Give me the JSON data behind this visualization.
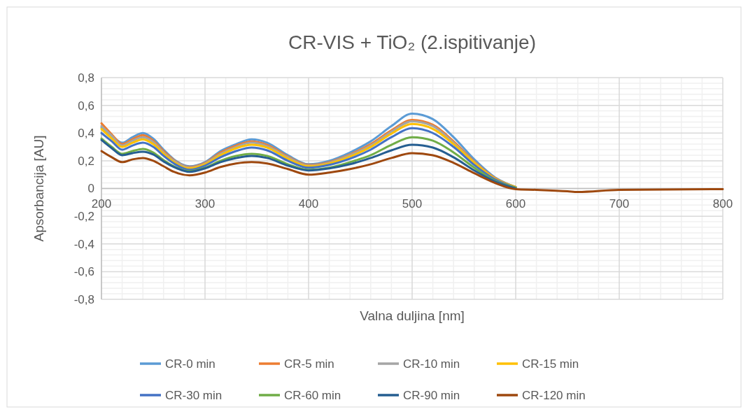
{
  "chart_data": {
    "type": "line",
    "title": "CR-VIS + TiO₂ (2.ispitivanje)",
    "xlabel": "Valna duljina  [nm]",
    "ylabel": "Apsorbancija [AU]",
    "x": [
      200,
      210,
      220,
      230,
      240,
      250,
      260,
      270,
      285,
      300,
      315,
      330,
      345,
      360,
      380,
      400,
      420,
      440,
      460,
      480,
      500,
      520,
      540,
      560,
      580,
      600,
      620,
      650,
      660,
      700,
      800
    ],
    "xlim": [
      200,
      800
    ],
    "xticks": [
      200,
      300,
      400,
      500,
      600,
      700,
      800
    ],
    "ylim": [
      -0.8,
      0.8
    ],
    "yticks": [
      {
        "value": -0.8,
        "label": "-0,8"
      },
      {
        "value": -0.6,
        "label": "-0,6"
      },
      {
        "value": -0.4,
        "label": "-0,4"
      },
      {
        "value": -0.2,
        "label": "-0,2"
      },
      0,
      {
        "value": 0.2,
        "label": "0,2"
      },
      {
        "value": 0.4,
        "label": "0,4"
      },
      {
        "value": 0.6,
        "label": "0,6"
      },
      {
        "value": 0.8,
        "label": "0,8"
      }
    ],
    "grid": true,
    "legend": "bottom",
    "marker": "none",
    "line_style": "solid",
    "series": [
      {
        "name": "CR-0 min",
        "color": "#5b9bd5",
        "values": [
          0.44,
          0.38,
          0.33,
          0.37,
          0.4,
          0.36,
          0.28,
          0.21,
          0.16,
          0.19,
          0.27,
          0.32,
          0.355,
          0.33,
          0.24,
          0.175,
          0.2,
          0.26,
          0.34,
          0.45,
          0.54,
          0.5,
          0.37,
          0.21,
          0.08,
          0.01,
          null,
          null,
          null,
          null,
          null
        ]
      },
      {
        "name": "CR-5 min",
        "color": "#ed7d31",
        "values": [
          0.47,
          0.39,
          0.32,
          0.355,
          0.385,
          0.345,
          0.27,
          0.205,
          0.155,
          0.185,
          0.26,
          0.31,
          0.34,
          0.315,
          0.23,
          0.17,
          0.19,
          0.245,
          0.32,
          0.42,
          0.495,
          0.46,
          0.34,
          0.195,
          0.075,
          0.01,
          null,
          null,
          null,
          null,
          null
        ]
      },
      {
        "name": "CR-10 min",
        "color": "#a5a5a5",
        "values": [
          0.45,
          0.38,
          0.31,
          0.345,
          0.37,
          0.335,
          0.26,
          0.2,
          0.15,
          0.18,
          0.25,
          0.3,
          0.33,
          0.305,
          0.225,
          0.165,
          0.185,
          0.24,
          0.31,
          0.41,
          0.485,
          0.45,
          0.33,
          0.19,
          0.07,
          0.01,
          null,
          null,
          null,
          null,
          null
        ]
      },
      {
        "name": "CR-15 min",
        "color": "#ffc000",
        "values": [
          0.43,
          0.36,
          0.3,
          0.33,
          0.355,
          0.32,
          0.25,
          0.19,
          0.145,
          0.175,
          0.24,
          0.29,
          0.315,
          0.295,
          0.215,
          0.16,
          0.18,
          0.23,
          0.3,
          0.395,
          0.465,
          0.43,
          0.32,
          0.185,
          0.07,
          0.01,
          null,
          null,
          null,
          null,
          null
        ]
      },
      {
        "name": "CR-30 min",
        "color": "#4472c4",
        "values": [
          0.4,
          0.34,
          0.28,
          0.31,
          0.33,
          0.3,
          0.235,
          0.18,
          0.135,
          0.165,
          0.225,
          0.27,
          0.295,
          0.275,
          0.2,
          0.15,
          0.17,
          0.215,
          0.28,
          0.37,
          0.435,
          0.4,
          0.3,
          0.17,
          0.065,
          0.005,
          null,
          null,
          null,
          null,
          null
        ]
      },
      {
        "name": "CR-60 min",
        "color": "#70ad47",
        "values": [
          0.36,
          0.3,
          0.25,
          0.27,
          0.285,
          0.26,
          0.205,
          0.16,
          0.125,
          0.15,
          0.2,
          0.235,
          0.25,
          0.235,
          0.175,
          0.135,
          0.15,
          0.19,
          0.24,
          0.315,
          0.37,
          0.345,
          0.26,
          0.15,
          0.055,
          0.005,
          null,
          null,
          null,
          null,
          null
        ]
      },
      {
        "name": "CR-90 min",
        "color": "#255e91",
        "values": [
          0.35,
          0.29,
          0.24,
          0.255,
          0.265,
          0.245,
          0.195,
          0.155,
          0.12,
          0.145,
          0.19,
          0.22,
          0.235,
          0.22,
          0.165,
          0.13,
          0.145,
          0.175,
          0.22,
          0.275,
          0.315,
          0.295,
          0.225,
          0.13,
          0.05,
          0,
          null,
          null,
          null,
          null,
          null
        ]
      },
      {
        "name": "CR-120 min",
        "color": "#9e480e",
        "values": [
          0.27,
          0.225,
          0.19,
          0.21,
          0.22,
          0.2,
          0.16,
          0.12,
          0.095,
          0.115,
          0.155,
          0.18,
          0.19,
          0.18,
          0.14,
          0.1,
          0.115,
          0.14,
          0.175,
          0.22,
          0.255,
          0.24,
          0.185,
          0.11,
          0.04,
          -0.005,
          -0.01,
          -0.02,
          -0.025,
          -0.01,
          -0.005
        ]
      }
    ]
  }
}
